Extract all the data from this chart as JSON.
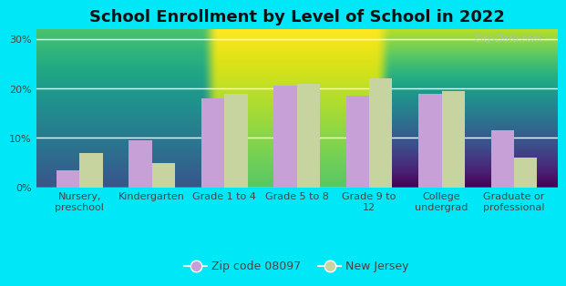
{
  "title": "School Enrollment by Level of School in 2022",
  "categories": [
    "Nursery,\npreschool",
    "Kindergarten",
    "Grade 1 to 4",
    "Grade 5 to 8",
    "Grade 9 to\n12",
    "College\nundergrad",
    "Graduate or\nprofessional"
  ],
  "zip_values": [
    3.5,
    9.5,
    18.0,
    20.5,
    18.5,
    19.0,
    11.5
  ],
  "nj_values": [
    7.0,
    5.0,
    19.0,
    21.0,
    22.0,
    19.5,
    6.0
  ],
  "zip_color": "#c8a0d8",
  "nj_color": "#c8d4a0",
  "background_outer": "#00e8f8",
  "ylim": [
    0,
    32
  ],
  "yticks": [
    0,
    10,
    20,
    30
  ],
  "ytick_labels": [
    "0%",
    "10%",
    "20%",
    "30%"
  ],
  "bar_width": 0.32,
  "legend_zip_label": "Zip code 08097",
  "legend_nj_label": "New Jersey",
  "title_fontsize": 13,
  "tick_fontsize": 8,
  "legend_fontsize": 9
}
